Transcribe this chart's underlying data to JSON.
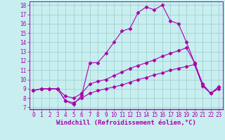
{
  "xlabel": "Windchill (Refroidissement éolien,°C)",
  "background_color": "#c8eef0",
  "line_color": "#aa00aa",
  "grid_color": "#99cccc",
  "xlim": [
    -0.5,
    23.5
  ],
  "ylim": [
    6.8,
    18.4
  ],
  "yticks": [
    7,
    8,
    9,
    10,
    11,
    12,
    13,
    14,
    15,
    16,
    17,
    18
  ],
  "xticks": [
    0,
    1,
    2,
    3,
    4,
    5,
    6,
    7,
    8,
    9,
    10,
    11,
    12,
    13,
    14,
    15,
    16,
    17,
    18,
    19,
    20,
    21,
    22,
    23
  ],
  "line1_x": [
    0,
    1,
    2,
    3,
    4,
    5,
    6,
    7,
    8,
    9,
    10,
    11,
    12,
    13,
    14,
    15,
    16,
    17,
    18,
    19,
    20,
    21,
    22,
    23
  ],
  "line1_y": [
    8.8,
    9.0,
    9.0,
    9.0,
    7.7,
    7.3,
    8.3,
    11.8,
    11.8,
    12.8,
    14.0,
    15.2,
    15.5,
    17.2,
    17.8,
    17.5,
    18.0,
    16.3,
    16.0,
    14.0,
    11.8,
    9.5,
    8.5,
    9.2
  ],
  "line2_x": [
    0,
    1,
    2,
    3,
    4,
    5,
    6,
    7,
    8,
    9,
    10,
    11,
    12,
    13,
    14,
    15,
    16,
    17,
    18,
    19,
    20,
    21,
    22,
    23
  ],
  "line2_y": [
    8.8,
    9.0,
    9.0,
    9.0,
    8.2,
    8.0,
    8.5,
    9.5,
    9.8,
    10.0,
    10.4,
    10.8,
    11.2,
    11.5,
    11.8,
    12.1,
    12.5,
    12.8,
    13.1,
    13.4,
    11.8,
    9.5,
    8.5,
    9.2
  ],
  "line3_x": [
    0,
    1,
    2,
    3,
    4,
    5,
    6,
    7,
    8,
    9,
    10,
    11,
    12,
    13,
    14,
    15,
    16,
    17,
    18,
    19,
    20,
    21,
    22,
    23
  ],
  "line3_y": [
    8.8,
    9.0,
    9.0,
    9.0,
    7.7,
    7.5,
    8.0,
    8.5,
    8.8,
    9.0,
    9.2,
    9.4,
    9.7,
    10.0,
    10.2,
    10.5,
    10.7,
    11.0,
    11.2,
    11.4,
    11.6,
    9.3,
    8.5,
    9.0
  ],
  "marker": "D",
  "marker_size": 2.5,
  "linewidth": 0.8,
  "tick_fontsize": 5.5,
  "label_fontsize": 6.5,
  "grid_linewidth": 0.5
}
